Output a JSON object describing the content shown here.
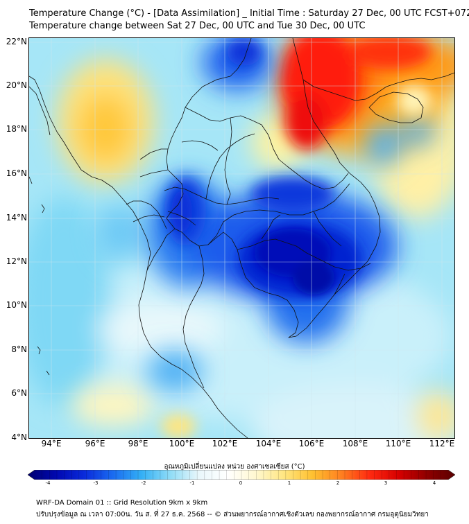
{
  "title_line1": "Temperature Change (°C) - [Data Assimilation] _ Initial Time : Saturday 27 Dec, 00 UTC FCST+072",
  "title_line2": "Temperature change between Sat 27 Dec, 00 UTC and Tue 30 Dec, 00 UTC",
  "map": {
    "lat_labels": [
      "22°N",
      "20°N",
      "18°N",
      "16°N",
      "14°N",
      "12°N",
      "10°N",
      "8°N",
      "6°N",
      "4°N"
    ],
    "lon_labels": [
      "94°E",
      "96°E",
      "98°E",
      "100°E",
      "102°E",
      "104°E",
      "106°E",
      "108°E",
      "110°E",
      "112°E"
    ],
    "lat_range": [
      4,
      22.2
    ],
    "lon_range": [
      93,
      112.6
    ]
  },
  "colorbar": {
    "title": "อุณหภูมิเปลี่ยนแปลง หน่วย องศาเซลเซียส (°C)",
    "ticks": [
      "-4",
      "-3",
      "-2",
      "-1",
      "0",
      "1",
      "2",
      "3",
      "4"
    ],
    "range": [
      -4,
      4
    ],
    "colors": [
      "#000070",
      "#0008b0",
      "#0a2bdc",
      "#1a6cf0",
      "#34b0f5",
      "#8fdcf6",
      "#e9f7fb",
      "#ffffff",
      "#fff8d0",
      "#ffe680",
      "#ffc030",
      "#ff8020",
      "#ff2a10",
      "#d80000",
      "#900000",
      "#5a0000"
    ]
  },
  "footer_line1": "WRF-DA Domain 01 :: Grid Resolution 9km x 9km",
  "footer_line2": "ปรับปรุงข้อมูล ณ เวลา 07:00น. วัน ส. ที่ 27 ธ.ค. 2568 -- © ส่วนพยากรณ์อากาศเชิงตัวเลข กองพยากรณ์อากาศ กรมอุตุนิยมวิทยา"
}
